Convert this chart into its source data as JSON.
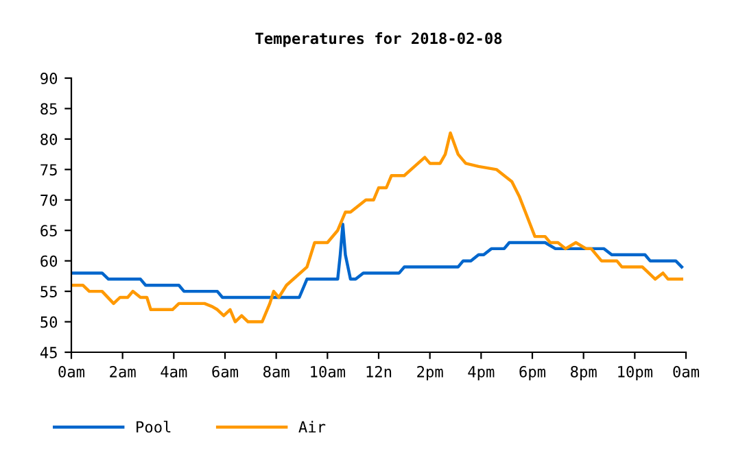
{
  "chart_data": {
    "type": "line",
    "title": "Temperatures for 2018-02-08",
    "xlim": [
      "2018-02-08T00:00",
      "2018-02-09T00:00"
    ],
    "xticks": [
      {
        "value": "2018-02-08T00:00",
        "label": "0am"
      },
      {
        "value": "2018-02-08T02:00",
        "label": "2am"
      },
      {
        "value": "2018-02-08T04:00",
        "label": "4am"
      },
      {
        "value": "2018-02-08T06:00",
        "label": "6am"
      },
      {
        "value": "2018-02-08T08:00",
        "label": "8am"
      },
      {
        "value": "2018-02-08T10:00",
        "label": "10am"
      },
      {
        "value": "2018-02-08T12:00",
        "label": "12n"
      },
      {
        "value": "2018-02-08T14:00",
        "label": "2pm"
      },
      {
        "value": "2018-02-08T16:00",
        "label": "4pm"
      },
      {
        "value": "2018-02-08T18:00",
        "label": "6pm"
      },
      {
        "value": "2018-02-08T20:00",
        "label": "8pm"
      },
      {
        "value": "2018-02-08T22:00",
        "label": "10pm"
      },
      {
        "value": "2018-02-09T00:00",
        "label": "0am"
      }
    ],
    "ylim": [
      45,
      90
    ],
    "yticks": [
      45,
      50,
      55,
      60,
      65,
      70,
      75,
      80,
      85,
      90
    ],
    "grid": false,
    "legend": "bottom",
    "marker": "none",
    "line_style": "solid",
    "series": [
      {
        "name": "Pool",
        "color": "#0066cc",
        "x": [
          "2018-02-08T00:00",
          "2018-02-08T01:12",
          "2018-02-08T01:27",
          "2018-02-08T02:42",
          "2018-02-08T02:54",
          "2018-02-08T04:12",
          "2018-02-08T04:24",
          "2018-02-08T05:42",
          "2018-02-08T05:54",
          "2018-02-08T08:54",
          "2018-02-08T09:12",
          "2018-02-08T10:24",
          "2018-02-08T10:30",
          "2018-02-08T10:36",
          "2018-02-08T10:42",
          "2018-02-08T10:54",
          "2018-02-08T11:06",
          "2018-02-08T11:24",
          "2018-02-08T12:48",
          "2018-02-08T13:00",
          "2018-02-08T15:06",
          "2018-02-08T15:18",
          "2018-02-08T15:36",
          "2018-02-08T15:54",
          "2018-02-08T16:06",
          "2018-02-08T16:24",
          "2018-02-08T16:54",
          "2018-02-08T17:06",
          "2018-02-08T18:30",
          "2018-02-08T18:54",
          "2018-02-08T20:48",
          "2018-02-08T21:06",
          "2018-02-08T22:24",
          "2018-02-08T22:36",
          "2018-02-08T23:36",
          "2018-02-08T23:50"
        ],
        "values": [
          58,
          58,
          57,
          57,
          56,
          56,
          55,
          55,
          54,
          54,
          57,
          57,
          61,
          66,
          61,
          57,
          57,
          58,
          58,
          59,
          59,
          60,
          60,
          61,
          61,
          62,
          62,
          63,
          63,
          62,
          62,
          61,
          61,
          60,
          60,
          59
        ]
      },
      {
        "name": "Air",
        "color": "#ff9900",
        "x": [
          "2018-02-08T00:00",
          "2018-02-08T00:27",
          "2018-02-08T00:42",
          "2018-02-08T01:12",
          "2018-02-08T01:39",
          "2018-02-08T01:54",
          "2018-02-08T02:12",
          "2018-02-08T02:24",
          "2018-02-08T02:42",
          "2018-02-08T02:57",
          "2018-02-08T03:06",
          "2018-02-08T03:57",
          "2018-02-08T04:12",
          "2018-02-08T05:12",
          "2018-02-08T05:30",
          "2018-02-08T05:42",
          "2018-02-08T05:57",
          "2018-02-08T06:12",
          "2018-02-08T06:24",
          "2018-02-08T06:39",
          "2018-02-08T06:54",
          "2018-02-08T07:27",
          "2018-02-08T07:45",
          "2018-02-08T07:54",
          "2018-02-08T08:06",
          "2018-02-08T08:24",
          "2018-02-08T09:12",
          "2018-02-08T09:30",
          "2018-02-08T10:00",
          "2018-02-08T10:24",
          "2018-02-08T10:42",
          "2018-02-08T10:54",
          "2018-02-08T11:30",
          "2018-02-08T11:48",
          "2018-02-08T12:00",
          "2018-02-08T12:18",
          "2018-02-08T12:30",
          "2018-02-08T13:00",
          "2018-02-08T13:24",
          "2018-02-08T13:48",
          "2018-02-08T14:00",
          "2018-02-08T14:24",
          "2018-02-08T14:36",
          "2018-02-08T14:48",
          "2018-02-08T15:06",
          "2018-02-08T15:24",
          "2018-02-08T15:54",
          "2018-02-08T16:36",
          "2018-02-08T17:12",
          "2018-02-08T17:30",
          "2018-02-08T18:06",
          "2018-02-08T18:30",
          "2018-02-08T18:42",
          "2018-02-08T19:00",
          "2018-02-08T19:18",
          "2018-02-08T19:42",
          "2018-02-08T20:06",
          "2018-02-08T20:18",
          "2018-02-08T20:42",
          "2018-02-08T21:18",
          "2018-02-08T21:30",
          "2018-02-08T22:18",
          "2018-02-08T22:48",
          "2018-02-08T23:06",
          "2018-02-08T23:18",
          "2018-02-08T23:50"
        ],
        "values": [
          56,
          56,
          55,
          55,
          53,
          54,
          54,
          55,
          54,
          54,
          52,
          52,
          53,
          53,
          52.5,
          52,
          51,
          52,
          50,
          51,
          50,
          50,
          53,
          55,
          54,
          56,
          59,
          63,
          63,
          65,
          68,
          68,
          70,
          70,
          72,
          72,
          74,
          74,
          75.5,
          77,
          76,
          76,
          77.5,
          81,
          77.5,
          76,
          75.5,
          75,
          73,
          70.5,
          64,
          64,
          63,
          63,
          62,
          63,
          62,
          62,
          60,
          60,
          59,
          59,
          57,
          58,
          57,
          57
        ]
      }
    ]
  }
}
